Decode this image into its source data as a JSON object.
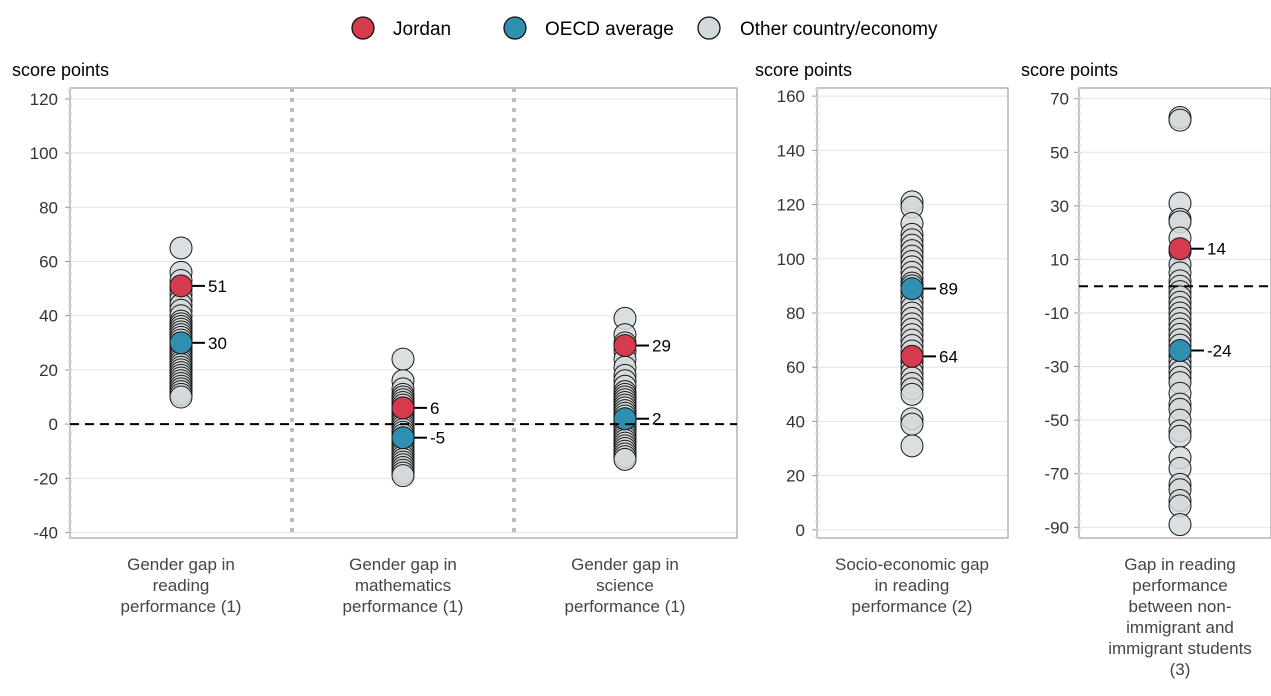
{
  "legend": [
    {
      "label": "Jordan",
      "color": "#d63a4f"
    },
    {
      "label": "OECD average",
      "color": "#2f8fb0"
    },
    {
      "label": "Other country/economy",
      "color": "#d4d9dc"
    }
  ],
  "chart_data": [
    {
      "type": "scatter",
      "ylabel": "score points",
      "ylim": [
        -42,
        124
      ],
      "yticks": [
        120,
        100,
        80,
        60,
        40,
        20,
        0,
        -20,
        -40
      ],
      "reference_line": 0,
      "grid": true,
      "categories": [
        "Gender gap in reading performance (1)",
        "Gender gap in mathematics performance (1)",
        "Gender gap in science performance (1)"
      ],
      "category_lines": [
        [
          "Gender gap in",
          "reading",
          "performance (1)"
        ],
        [
          "Gender gap in",
          "mathematics",
          "performance (1)"
        ],
        [
          "Gender gap in",
          "science",
          "performance (1)"
        ]
      ],
      "series": [
        {
          "name": "Other country/economy",
          "values": [
            [
              65,
              56,
              53,
              50,
              48,
              46,
              44,
              42,
              40,
              38,
              37,
              36,
              35,
              34,
              33,
              32,
              31,
              30,
              29,
              28,
              27,
              26,
              25,
              24,
              23,
              22,
              21,
              20,
              19,
              18,
              17,
              16,
              15,
              14,
              13,
              12,
              11,
              10
            ],
            [
              24,
              16,
              13,
              11,
              10,
              9,
              8,
              7,
              6,
              5,
              4,
              3,
              2,
              1,
              0,
              -1,
              -2,
              -3,
              -4,
              -5,
              -6,
              -7,
              -8,
              -9,
              -10,
              -11,
              -12,
              -13,
              -14,
              -15,
              -16,
              -17,
              -18,
              -19
            ],
            [
              39,
              33,
              30,
              27,
              24,
              21,
              18,
              16,
              14,
              12,
              11,
              10,
              9,
              8,
              7,
              6,
              5,
              4,
              3,
              2,
              1,
              0,
              -1,
              -2,
              -3,
              -4,
              -5,
              -6,
              -7,
              -8,
              -9,
              -10,
              -11,
              -12,
              -13
            ]
          ]
        },
        {
          "name": "Jordan",
          "values": [
            51,
            6,
            29
          ]
        },
        {
          "name": "OECD average",
          "values": [
            30,
            -5,
            2
          ]
        }
      ],
      "labels": {
        "jordan": [
          "51",
          "6",
          "29"
        ],
        "oecd": [
          "30",
          "-5",
          "2"
        ]
      }
    },
    {
      "type": "scatter",
      "ylabel": "score points",
      "ylim": [
        -3,
        163
      ],
      "yticks": [
        160,
        140,
        120,
        100,
        80,
        60,
        40,
        20,
        0
      ],
      "reference_line": null,
      "grid": true,
      "categories": [
        "Socio-economic gap in reading performance (2)"
      ],
      "category_lines": [
        [
          "Socio-economic gap",
          "in reading",
          "performance (2)"
        ]
      ],
      "series": [
        {
          "name": "Other country/economy",
          "values": [
            [
              121,
              119,
              113,
              109,
              107,
              105,
              103,
              101,
              99,
              97,
              95,
              93,
              91,
              90,
              88,
              86,
              84,
              82,
              80,
              78,
              76,
              74,
              72,
              70,
              68,
              66,
              64,
              62,
              60,
              58,
              56,
              54,
              52,
              50,
              41,
              39,
              31
            ]
          ]
        },
        {
          "name": "Jordan",
          "values": [
            64
          ]
        },
        {
          "name": "OECD average",
          "values": [
            89
          ]
        }
      ],
      "labels": {
        "jordan": [
          "64"
        ],
        "oecd": [
          "89"
        ]
      }
    },
    {
      "type": "scatter",
      "ylabel": "score points",
      "ylim": [
        -94,
        74
      ],
      "yticks": [
        70,
        50,
        30,
        10,
        -10,
        -30,
        -50,
        -70,
        -90
      ],
      "reference_line": 0,
      "grid": true,
      "categories": [
        "Gap in reading performance between non-immigrant and immigrant students (3)"
      ],
      "category_lines": [
        [
          "Gap in reading",
          "performance",
          "between non-",
          "immigrant and",
          "immigrant students",
          "(3)"
        ]
      ],
      "series": [
        {
          "name": "Other country/economy",
          "values": [
            [
              63,
              62,
              31,
              25,
              24,
              18,
              13,
              8,
              5,
              2,
              0,
              -2,
              -4,
              -6,
              -8,
              -10,
              -12,
              -14,
              -16,
              -18,
              -20,
              -22,
              -26,
              -28,
              -30,
              -32,
              -34,
              -36,
              -40,
              -44,
              -46,
              -50,
              -54,
              -56,
              -64,
              -68,
              -74,
              -76,
              -80,
              -82,
              -89
            ]
          ]
        },
        {
          "name": "Jordan",
          "values": [
            14
          ]
        },
        {
          "name": "OECD average",
          "values": [
            -24
          ]
        }
      ],
      "labels": {
        "jordan": [
          "14"
        ],
        "oecd": [
          "-24"
        ]
      }
    }
  ]
}
